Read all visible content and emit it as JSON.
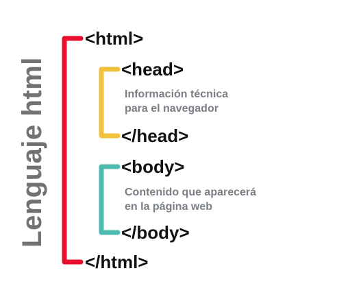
{
  "title": "Lenguaje html",
  "html_block": {
    "open_tag": "<html>",
    "close_tag": "</html>",
    "bracket_color": "#e8112d"
  },
  "head_block": {
    "open_tag": "<head>",
    "close_tag": "</head>",
    "description": [
      "Información técnica",
      "para el navegador"
    ],
    "bracket_color": "#f0c23c"
  },
  "body_block": {
    "open_tag": "<body>",
    "close_tag": "</body>",
    "description": [
      "Contenido que aparecerá",
      "en la página web"
    ],
    "bracket_color": "#4cbcb0"
  },
  "colors": {
    "title": "#727272",
    "tag_text": "#111111",
    "description_text": "#7a7f86"
  }
}
